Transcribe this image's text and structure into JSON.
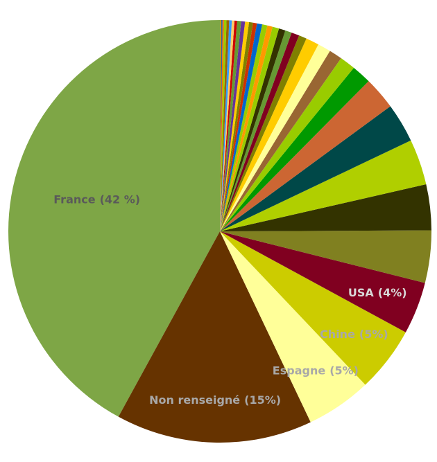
{
  "chart_data": {
    "type": "pie",
    "categories": [
      "France",
      "Non renseigné",
      "Espagne",
      "Chine",
      "USA",
      null,
      null,
      null,
      null,
      null,
      null,
      null,
      null,
      null,
      null,
      null,
      null,
      null,
      null,
      null,
      null,
      null,
      null,
      null,
      null,
      null,
      null,
      null,
      null,
      null,
      null,
      null,
      null,
      null,
      null,
      null
    ],
    "values": [
      42,
      15,
      5,
      5,
      4,
      4,
      3.5,
      3.5,
      3,
      2.5,
      1.5,
      1.2,
      1,
      1,
      1,
      0.6,
      0.6,
      0.5,
      0.5,
      0.5,
      0.4,
      0.4,
      0.4,
      0.3,
      0.3,
      0.3,
      0.3,
      0.3,
      0.2,
      0.2,
      0.2,
      0.2,
      0.2,
      0.1,
      0.1,
      0.1
    ],
    "value_labels": [
      "(42 %)",
      "(15%)",
      "(5%)",
      "(5%)",
      "(4%)",
      null,
      null,
      null,
      null,
      null,
      null,
      null,
      null,
      null,
      null,
      null,
      null,
      null,
      null,
      null,
      null,
      null,
      null,
      null,
      null,
      null,
      null,
      null,
      null,
      null,
      null,
      null,
      null,
      null,
      null,
      null
    ],
    "colors": [
      "#7ea646",
      "#663300",
      "#ffff99",
      "#cccc00",
      "#800020",
      "#808020",
      "#333300",
      "#b0cf00",
      "#004848",
      "#cc6633",
      "#009900",
      "#99cc00",
      "#996633",
      "#ffff99",
      "#ffcc00",
      "#808000",
      "#800020",
      "#669933",
      "#333300",
      "#99cc00",
      "#ff9900",
      "#99cc00",
      "#0066cc",
      "#cc3300",
      "#808000",
      "#ffcc00",
      "#663399",
      "#669933",
      "#cc0000",
      "#ffcc66",
      "#3399ff",
      "#996600",
      "#99cc00",
      "#ff6600",
      "#336699",
      "#cc9900"
    ]
  }
}
